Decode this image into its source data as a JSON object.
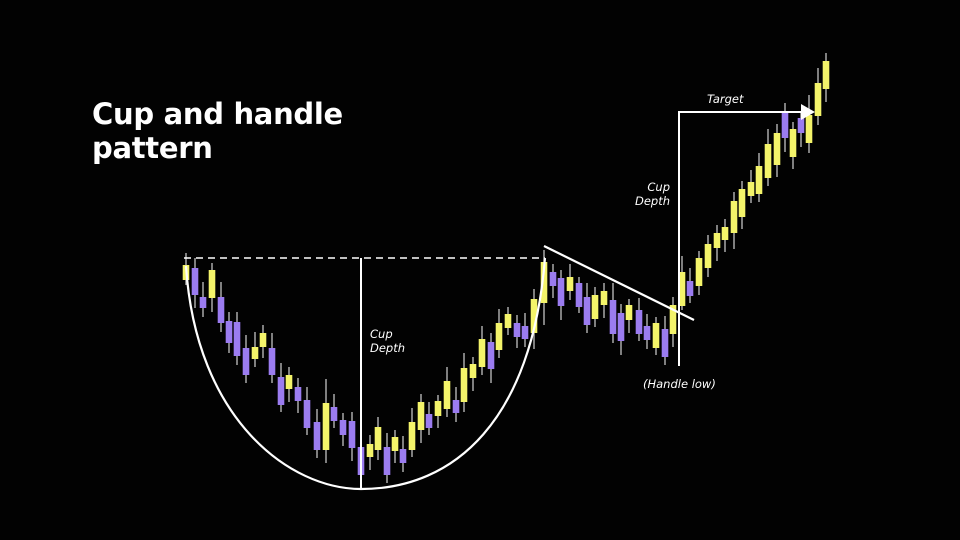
{
  "title": {
    "line1": "Cup and handle",
    "line2": "pattern"
  },
  "labels": {
    "cup_depth_1": {
      "line1": "Cup",
      "line2": "Depth"
    },
    "cup_depth_2": {
      "line1": "Cup",
      "line2": "Depth"
    },
    "handle_low": "(Handle low)",
    "target": "Target"
  },
  "colors": {
    "bullish": "#f4f46a",
    "bearish": "#9b7cf0",
    "wick": "#b5b5b5",
    "lines": "#ffffff",
    "background": "#020202"
  }
}
